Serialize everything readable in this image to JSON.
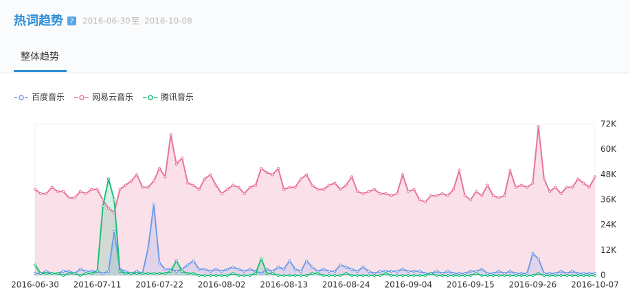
{
  "header": {
    "title": "热词趋势",
    "help": "?",
    "start_date": "2016-06-30",
    "separator": "至",
    "end_date": "2016-10-08"
  },
  "tabs": [
    "整体趋势"
  ],
  "chart_data": {
    "type": "line",
    "area": true,
    "markers": true,
    "yaxis_side": "right",
    "grid": false,
    "legend": "top-left",
    "categories": [
      "2016-06-30",
      null,
      null,
      null,
      null,
      null,
      null,
      null,
      null,
      null,
      null,
      "2016-07-11",
      null,
      null,
      null,
      null,
      null,
      null,
      null,
      null,
      null,
      null,
      "2016-07-22",
      null,
      null,
      null,
      null,
      null,
      null,
      null,
      null,
      null,
      null,
      "2016-08-02",
      null,
      null,
      null,
      null,
      null,
      null,
      null,
      null,
      null,
      null,
      "2016-08-13",
      null,
      null,
      null,
      null,
      null,
      null,
      null,
      null,
      null,
      null,
      "2016-08-24",
      null,
      null,
      null,
      null,
      null,
      null,
      null,
      null,
      null,
      null,
      "2016-09-04",
      null,
      null,
      null,
      null,
      null,
      null,
      null,
      null,
      null,
      null,
      "2016-09-15",
      null,
      null,
      null,
      null,
      null,
      null,
      null,
      null,
      null,
      null,
      "2016-09-26",
      null,
      null,
      null,
      null,
      null,
      null,
      null,
      null,
      null,
      null,
      "2016-10-07"
    ],
    "ylim": [
      0,
      72000
    ],
    "yticks": [
      0,
      {
        "value": 12000,
        "label": "12K"
      },
      {
        "value": 24000,
        "label": "24K"
      },
      {
        "value": 36000,
        "label": "36K"
      },
      {
        "value": 48000,
        "label": "48K"
      },
      {
        "value": 60000,
        "label": "60K"
      },
      {
        "value": 72000,
        "label": "72K"
      }
    ],
    "series": [
      {
        "name": "百度音乐",
        "color": "#6f9ce8",
        "values": [
          1000,
          1000,
          2000,
          1000,
          1000,
          2000,
          2000,
          1000,
          3000,
          2000,
          2000,
          2000,
          1000,
          2000,
          21000,
          3000,
          2000,
          1000,
          2000,
          1000,
          13000,
          34000,
          6000,
          3000,
          3000,
          2000,
          3000,
          5000,
          7000,
          3000,
          3000,
          2000,
          3000,
          2000,
          3000,
          4000,
          3000,
          2000,
          3000,
          2000,
          1000,
          3000,
          2000,
          4000,
          3000,
          7000,
          3000,
          2000,
          7000,
          4000,
          2000,
          3000,
          2000,
          2000,
          5000,
          4000,
          3000,
          2000,
          4000,
          2000,
          1000,
          2000,
          2000,
          2000,
          2000,
          3000,
          2000,
          2000,
          2000,
          1000,
          1000,
          2000,
          1000,
          2000,
          1000,
          1000,
          1000,
          2000,
          2000,
          3000,
          1000,
          1000,
          2000,
          1000,
          2000,
          1000,
          1000,
          1000,
          10500,
          8000,
          1000,
          1000,
          1000,
          2000,
          1000,
          2000,
          1000,
          1000,
          1000,
          1000
        ]
      },
      {
        "name": "网易云音乐",
        "color": "#e8739a",
        "values": [
          41000,
          39000,
          39000,
          42000,
          40000,
          40000,
          37000,
          37000,
          40000,
          39000,
          41000,
          41000,
          36000,
          32000,
          30000,
          41000,
          43000,
          45000,
          48000,
          42000,
          42000,
          45000,
          51000,
          47000,
          67000,
          53000,
          56000,
          44000,
          43000,
          41000,
          46000,
          48000,
          43000,
          39000,
          41000,
          43000,
          42000,
          39000,
          42000,
          43000,
          51000,
          49000,
          48000,
          51000,
          41000,
          42000,
          42000,
          46000,
          48000,
          43000,
          41000,
          41000,
          43000,
          44000,
          41000,
          43000,
          47000,
          40000,
          39000,
          40000,
          41000,
          39000,
          39000,
          38000,
          39000,
          48000,
          40000,
          41000,
          36000,
          35000,
          38000,
          38000,
          39000,
          38000,
          41000,
          50000,
          38000,
          36000,
          40000,
          38000,
          43000,
          38000,
          37000,
          38000,
          50000,
          42000,
          43000,
          42000,
          44000,
          71000,
          46000,
          40000,
          42000,
          39000,
          42000,
          42000,
          46000,
          44000,
          42000,
          47000
        ]
      },
      {
        "name": "腾讯音乐",
        "color": "#1dbf7a",
        "values": [
          5000,
          1000,
          1000,
          1000,
          1000,
          0,
          1000,
          1000,
          0,
          1000,
          1000,
          2000,
          33000,
          46000,
          36000,
          2000,
          1000,
          1000,
          1000,
          1000,
          1000,
          1000,
          1000,
          1000,
          2000,
          7000,
          2000,
          1000,
          1000,
          0,
          0,
          0,
          0,
          0,
          0,
          1000,
          0,
          0,
          0,
          1000,
          8000,
          1000,
          1000,
          0,
          0,
          0,
          0,
          0,
          0,
          1000,
          1000,
          0,
          0,
          0,
          0,
          1000,
          0,
          0,
          0,
          0,
          0,
          0,
          1000,
          0,
          0,
          0,
          0,
          0,
          0,
          0,
          1000,
          0,
          0,
          0,
          0,
          0,
          0,
          0,
          1000,
          0,
          0,
          0,
          0,
          0,
          0,
          0,
          0,
          0,
          0,
          1000,
          0,
          0,
          0,
          0,
          0,
          0,
          0,
          0,
          0,
          0
        ]
      }
    ]
  }
}
